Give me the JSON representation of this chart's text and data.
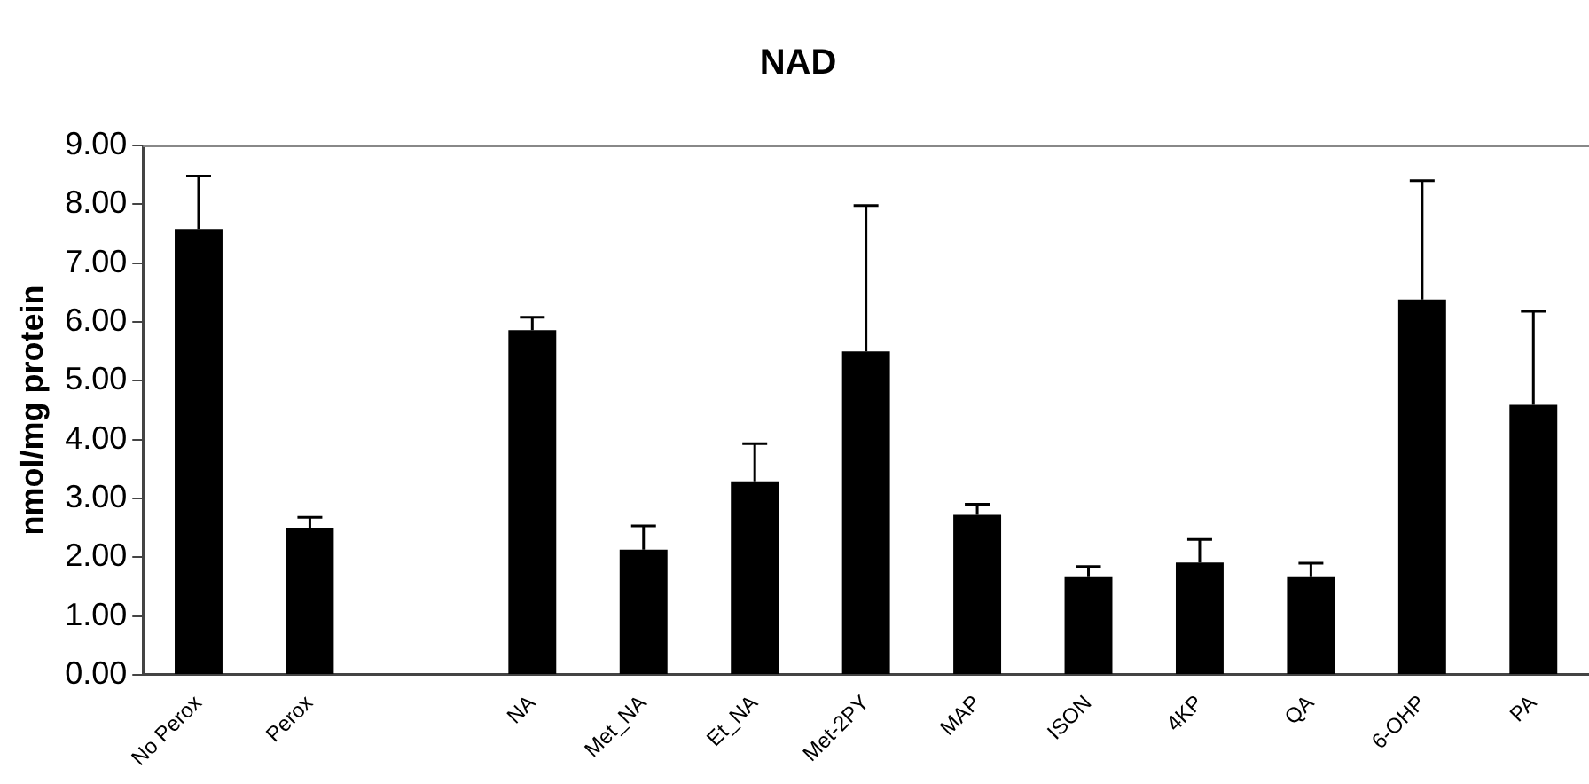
{
  "chart_data": {
    "type": "bar",
    "title": "NAD",
    "ylabel": "nmol/mg protein",
    "categories": [
      "No Perox",
      "Perox",
      null,
      "NA",
      "Met_NA",
      "Et_NA",
      "Met-2PY",
      "MAP",
      "ISON",
      "4KP",
      "QA",
      "6-OHP",
      "PA"
    ],
    "values": [
      7.58,
      2.5,
      null,
      5.86,
      2.13,
      3.29,
      5.5,
      2.72,
      1.66,
      1.91,
      1.66,
      6.38,
      4.59
    ],
    "errors": [
      [
        7.58,
        8.48
      ],
      [
        2.5,
        2.68
      ],
      null,
      [
        5.86,
        6.08
      ],
      [
        2.13,
        2.53
      ],
      [
        3.29,
        3.93
      ],
      [
        5.5,
        7.98
      ],
      [
        2.72,
        2.9
      ],
      [
        1.66,
        1.84
      ],
      [
        1.91,
        2.3
      ],
      [
        1.66,
        1.9
      ],
      [
        6.38,
        8.4
      ],
      [
        4.59,
        6.18
      ]
    ],
    "color": "#000000",
    "ylim": [
      0,
      9
    ],
    "yticks": [
      {
        "value": 0,
        "label": "0.00"
      },
      {
        "value": 1,
        "label": "1.00"
      },
      {
        "value": 2,
        "label": "2.00"
      },
      {
        "value": 3,
        "label": "3.00"
      },
      {
        "value": 4,
        "label": "4.00"
      },
      {
        "value": 5,
        "label": "5.00"
      },
      {
        "value": 6,
        "label": "6.00"
      },
      {
        "value": 7,
        "label": "7.00"
      },
      {
        "value": 8,
        "label": "8.00"
      },
      {
        "value": 9,
        "label": "9.00"
      }
    ],
    "grid": false,
    "legend": false
  }
}
